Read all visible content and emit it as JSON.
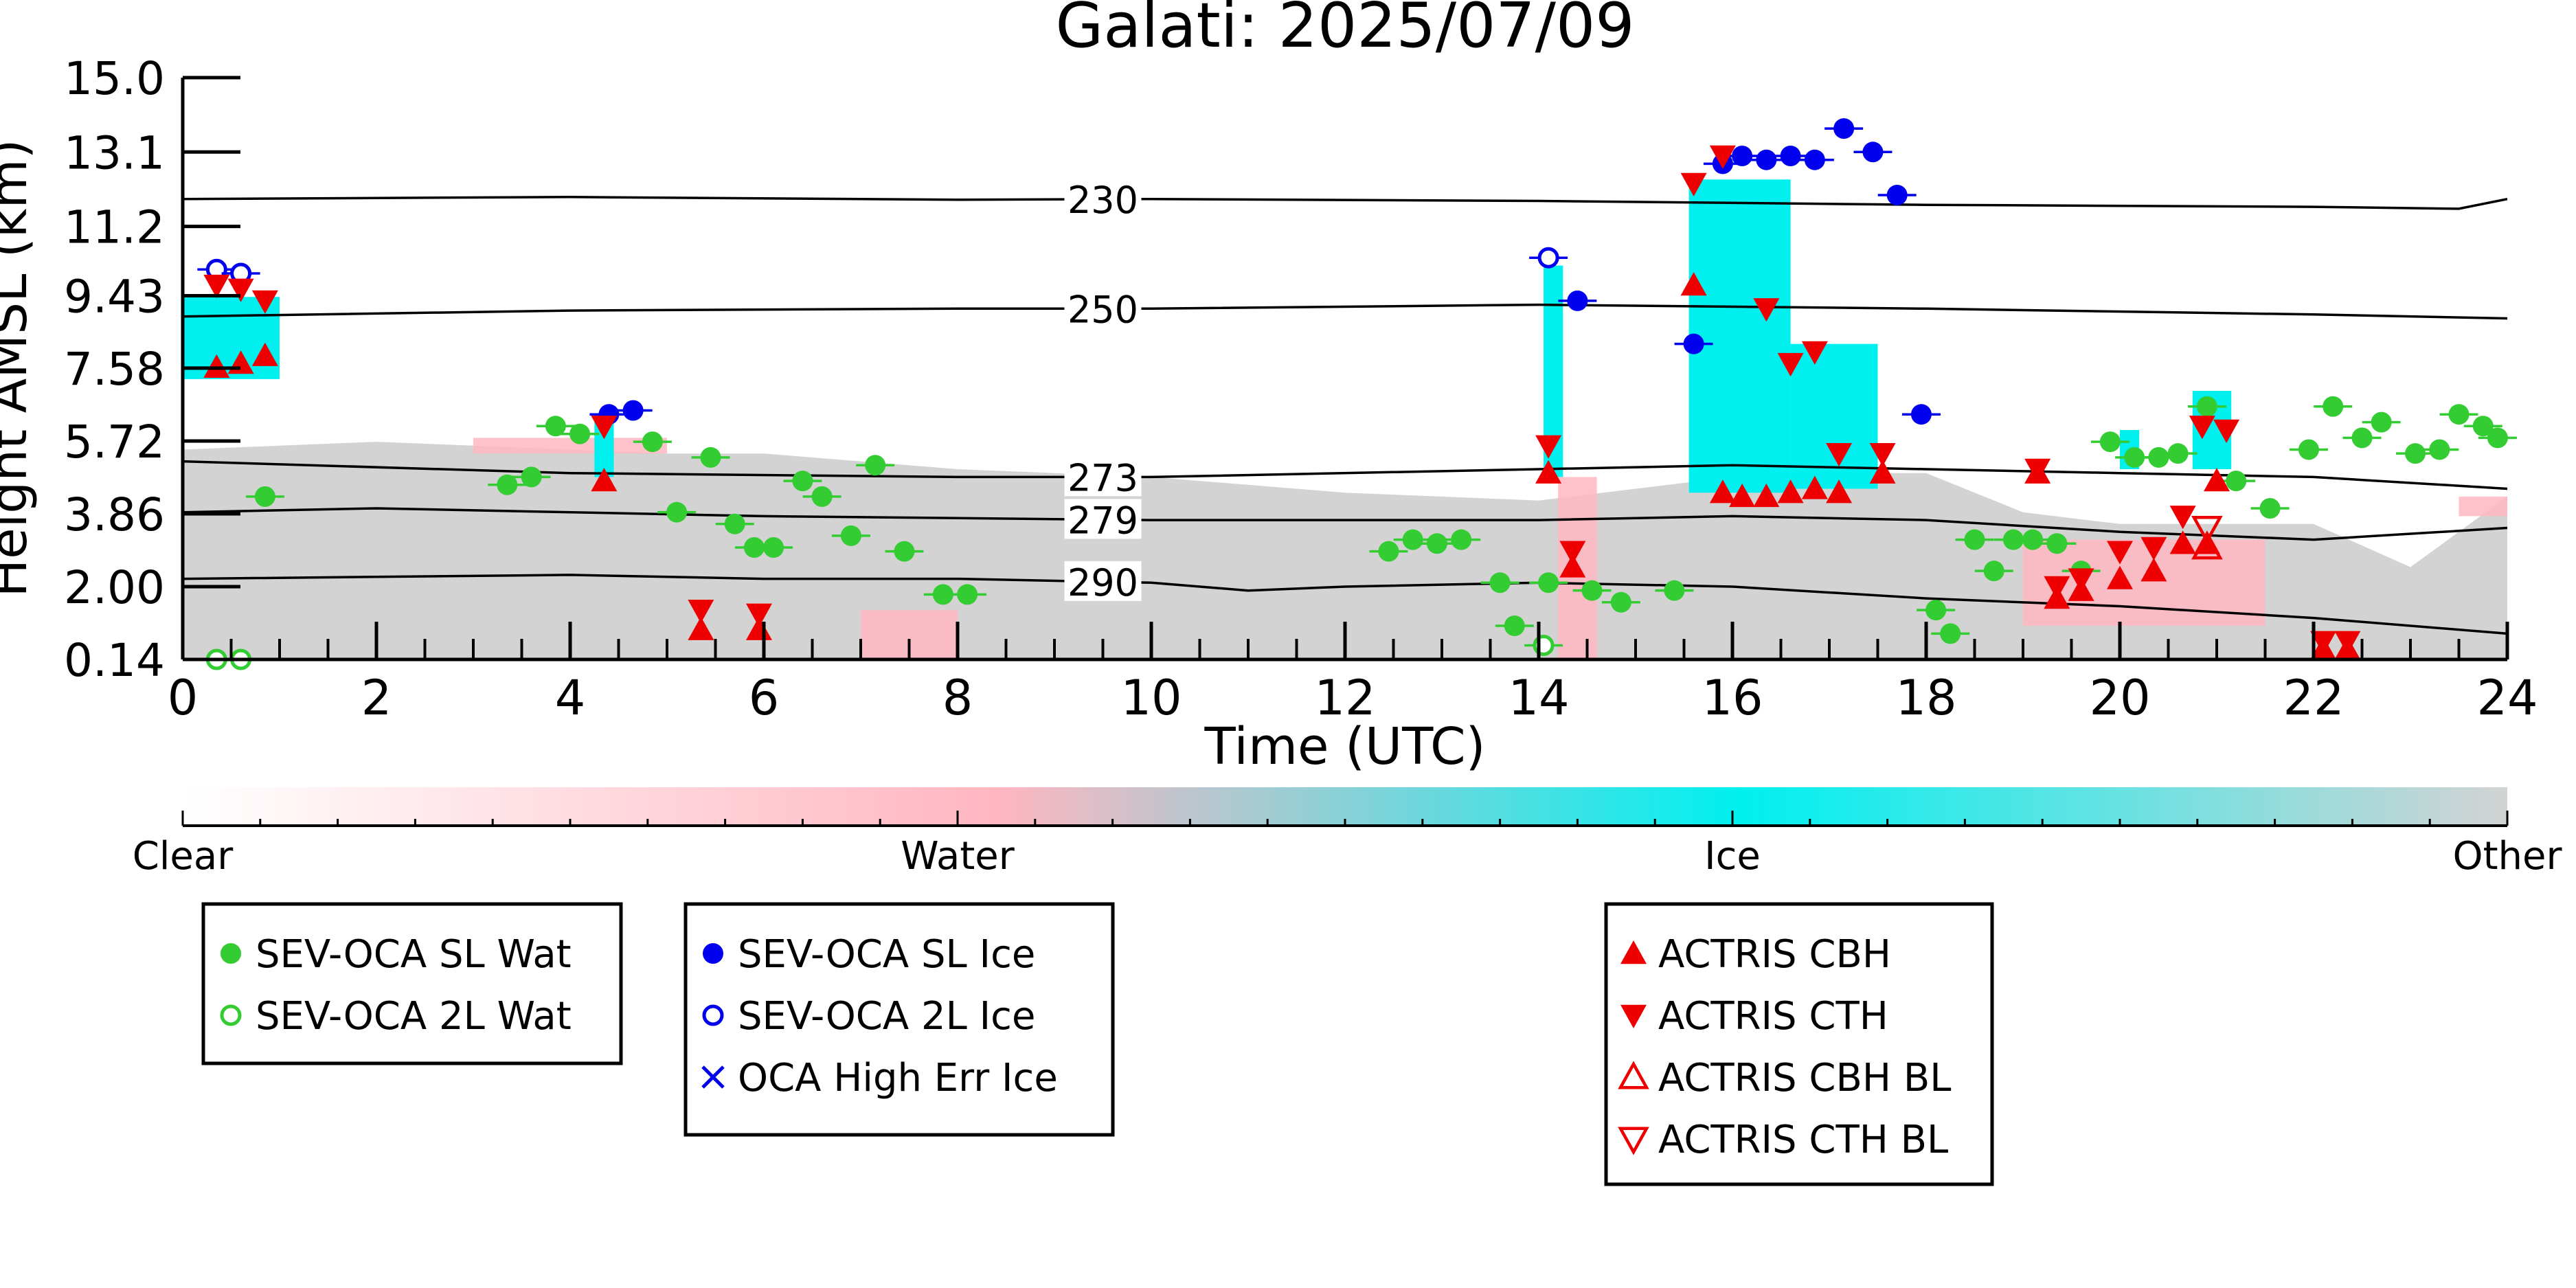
{
  "chart_data": {
    "type": "scatter",
    "title": "Galati: 2025/07/09",
    "xlabel": "Time (UTC)",
    "ylabel": "Height AMSL (km)",
    "xlim": [
      0,
      24
    ],
    "ylim": [
      0.14,
      15.0
    ],
    "x_ticks": [
      0,
      2,
      4,
      6,
      8,
      10,
      12,
      14,
      16,
      18,
      20,
      22,
      24
    ],
    "y_ticks": [
      "0.14",
      "2.00",
      "3.86",
      "5.72",
      "7.58",
      "9.43",
      "11.2",
      "13.1",
      "15.0"
    ],
    "y_tick_values": [
      0.14,
      2.0,
      3.86,
      5.72,
      7.58,
      9.43,
      11.2,
      13.1,
      15.0
    ],
    "grid": false,
    "background_classes": {
      "other_gray": [
        [
          0.0,
          5.5
        ],
        [
          1.0,
          5.6
        ],
        [
          2.0,
          5.7
        ],
        [
          3.0,
          5.6
        ],
        [
          4.0,
          5.5
        ],
        [
          5.0,
          5.4
        ],
        [
          6.0,
          5.4
        ],
        [
          7.0,
          5.2
        ],
        [
          8.0,
          5.0
        ],
        [
          9.0,
          4.9
        ],
        [
          10.0,
          4.8
        ],
        [
          11.0,
          4.6
        ],
        [
          12.0,
          4.4
        ],
        [
          13.0,
          4.3
        ],
        [
          14.0,
          4.2
        ],
        [
          15.0,
          4.5
        ],
        [
          16.0,
          4.8
        ],
        [
          17.0,
          4.9
        ],
        [
          18.0,
          4.9
        ],
        [
          19.0,
          3.9
        ],
        [
          20.0,
          3.6
        ],
        [
          21.0,
          3.6
        ],
        [
          22.0,
          3.6
        ],
        [
          23.0,
          2.5
        ],
        [
          24.0,
          4.3
        ]
      ],
      "ice_regions": [
        [
          [
            0.0,
            7.3
          ],
          [
            1.0,
            7.3
          ],
          [
            1.0,
            9.4
          ],
          [
            0.0,
            9.4
          ]
        ],
        [
          [
            15.55,
            4.4
          ],
          [
            16.6,
            4.4
          ],
          [
            16.6,
            12.4
          ],
          [
            15.55,
            12.4
          ]
        ],
        [
          [
            16.6,
            4.5
          ],
          [
            17.5,
            4.5
          ],
          [
            17.5,
            8.2
          ],
          [
            16.6,
            8.2
          ]
        ],
        [
          [
            14.05,
            4.8
          ],
          [
            14.25,
            4.8
          ],
          [
            14.25,
            10.2
          ],
          [
            14.05,
            10.2
          ]
        ],
        [
          [
            4.25,
            4.8
          ],
          [
            4.45,
            4.8
          ],
          [
            4.45,
            6.4
          ],
          [
            4.25,
            6.4
          ]
        ],
        [
          [
            20.75,
            5.0
          ],
          [
            21.15,
            5.0
          ],
          [
            21.15,
            7.0
          ],
          [
            20.75,
            7.0
          ]
        ],
        [
          [
            20.0,
            5.0
          ],
          [
            20.2,
            5.0
          ],
          [
            20.2,
            6.0
          ],
          [
            20.0,
            6.0
          ]
        ]
      ],
      "water_patches": [
        [
          [
            3.0,
            5.4
          ],
          [
            5.0,
            5.4
          ],
          [
            5.0,
            5.8
          ],
          [
            3.0,
            5.8
          ]
        ],
        [
          [
            7.0,
            0.14
          ],
          [
            8.0,
            0.14
          ],
          [
            8.0,
            1.4
          ],
          [
            7.0,
            1.4
          ]
        ],
        [
          [
            19.0,
            1.0
          ],
          [
            21.5,
            1.0
          ],
          [
            21.5,
            3.2
          ],
          [
            19.0,
            3.2
          ]
        ],
        [
          [
            14.2,
            0.14
          ],
          [
            14.6,
            0.14
          ],
          [
            14.6,
            4.8
          ],
          [
            14.2,
            4.8
          ]
        ],
        [
          [
            23.5,
            3.8
          ],
          [
            24.0,
            3.8
          ],
          [
            24.0,
            4.3
          ],
          [
            23.5,
            4.3
          ]
        ]
      ]
    },
    "isotherms": [
      {
        "label": "230",
        "points": [
          [
            0,
            11.9
          ],
          [
            4,
            11.95
          ],
          [
            8,
            11.88
          ],
          [
            10,
            11.9
          ],
          [
            14,
            11.85
          ],
          [
            18,
            11.75
          ],
          [
            22,
            11.7
          ],
          [
            23.5,
            11.65
          ],
          [
            24,
            11.9
          ]
        ]
      },
      {
        "label": "250",
        "points": [
          [
            0,
            8.9
          ],
          [
            4,
            9.05
          ],
          [
            8,
            9.1
          ],
          [
            10,
            9.1
          ],
          [
            14,
            9.2
          ],
          [
            18,
            9.1
          ],
          [
            22,
            8.95
          ],
          [
            24,
            8.85
          ]
        ]
      },
      {
        "label": "273",
        "points": [
          [
            0,
            5.2
          ],
          [
            4,
            4.9
          ],
          [
            8,
            4.8
          ],
          [
            10,
            4.8
          ],
          [
            14,
            5.0
          ],
          [
            16,
            5.1
          ],
          [
            18,
            5.0
          ],
          [
            20,
            4.9
          ],
          [
            22,
            4.8
          ],
          [
            24,
            4.5
          ]
        ]
      },
      {
        "label": "279",
        "points": [
          [
            0,
            3.9
          ],
          [
            2,
            4.0
          ],
          [
            6,
            3.8
          ],
          [
            10,
            3.7
          ],
          [
            14,
            3.7
          ],
          [
            16,
            3.8
          ],
          [
            18,
            3.7
          ],
          [
            20,
            3.4
          ],
          [
            22,
            3.2
          ],
          [
            24,
            3.5
          ]
        ]
      },
      {
        "label": "290",
        "points": [
          [
            0,
            2.2
          ],
          [
            4,
            2.3
          ],
          [
            6,
            2.2
          ],
          [
            8,
            2.2
          ],
          [
            10,
            2.1
          ],
          [
            11,
            1.9
          ],
          [
            12,
            2.0
          ],
          [
            14,
            2.1
          ],
          [
            16,
            2.0
          ],
          [
            18,
            1.7
          ],
          [
            20,
            1.5
          ],
          [
            22,
            1.2
          ],
          [
            24,
            0.8
          ]
        ]
      }
    ],
    "isotherm_label_x": 9.5,
    "series": [
      {
        "name": "SEV-OCA SL Wat",
        "marker": "filled-circle",
        "color": "#33cc33",
        "points": [
          [
            0.85,
            4.3
          ],
          [
            3.35,
            4.6
          ],
          [
            3.6,
            4.8
          ],
          [
            3.85,
            6.1
          ],
          [
            4.1,
            5.9
          ],
          [
            4.85,
            5.7
          ],
          [
            5.1,
            3.9
          ],
          [
            5.45,
            5.3
          ],
          [
            5.7,
            3.6
          ],
          [
            5.9,
            3.0
          ],
          [
            6.1,
            3.0
          ],
          [
            6.4,
            4.7
          ],
          [
            6.6,
            4.3
          ],
          [
            6.9,
            3.3
          ],
          [
            7.15,
            5.1
          ],
          [
            7.45,
            2.9
          ],
          [
            7.85,
            1.8
          ],
          [
            8.1,
            1.8
          ],
          [
            12.45,
            2.9
          ],
          [
            12.7,
            3.2
          ],
          [
            12.95,
            3.1
          ],
          [
            13.2,
            3.2
          ],
          [
            13.6,
            2.1
          ],
          [
            13.75,
            1.0
          ],
          [
            14.1,
            2.1
          ],
          [
            14.55,
            1.9
          ],
          [
            14.85,
            1.6
          ],
          [
            15.4,
            1.9
          ],
          [
            18.1,
            1.4
          ],
          [
            18.25,
            0.8
          ],
          [
            18.5,
            3.2
          ],
          [
            18.7,
            2.4
          ],
          [
            18.9,
            3.2
          ],
          [
            19.1,
            3.2
          ],
          [
            19.35,
            3.1
          ],
          [
            19.6,
            2.4
          ],
          [
            19.9,
            5.7
          ],
          [
            20.15,
            5.3
          ],
          [
            20.4,
            5.3
          ],
          [
            20.6,
            5.4
          ],
          [
            20.9,
            6.6
          ],
          [
            21.2,
            4.7
          ],
          [
            21.55,
            4.0
          ],
          [
            21.95,
            5.5
          ],
          [
            22.2,
            6.6
          ],
          [
            22.5,
            5.8
          ],
          [
            22.7,
            6.2
          ],
          [
            23.05,
            5.4
          ],
          [
            23.3,
            5.5
          ],
          [
            23.5,
            6.4
          ],
          [
            23.75,
            6.1
          ],
          [
            23.9,
            5.8
          ]
        ]
      },
      {
        "name": "SEV-OCA 2L Wat",
        "marker": "open-circle",
        "color": "#33cc33",
        "points": [
          [
            0.35,
            0.14
          ],
          [
            0.6,
            0.14
          ],
          [
            14.05,
            0.5
          ]
        ]
      },
      {
        "name": "SEV-OCA SL Ice",
        "marker": "filled-circle",
        "color": "#0000ee",
        "points": [
          [
            4.4,
            6.4
          ],
          [
            4.65,
            6.5
          ],
          [
            14.4,
            9.3
          ],
          [
            15.6,
            8.2
          ],
          [
            15.9,
            12.8
          ],
          [
            16.1,
            13.0
          ],
          [
            16.35,
            12.9
          ],
          [
            16.6,
            13.0
          ],
          [
            16.85,
            12.9
          ],
          [
            17.15,
            13.7
          ],
          [
            17.45,
            13.1
          ],
          [
            17.7,
            12.0
          ],
          [
            17.95,
            6.4
          ]
        ]
      },
      {
        "name": "SEV-OCA 2L Ice",
        "marker": "open-circle",
        "color": "#0000ee",
        "points": [
          [
            0.35,
            10.1
          ],
          [
            0.6,
            10.0
          ],
          [
            14.1,
            10.4
          ]
        ]
      },
      {
        "name": "OCA High Err Ice",
        "marker": "cross",
        "color": "#0000ee",
        "points": []
      },
      {
        "name": "ACTRIS CBH",
        "marker": "filled-triangle-up",
        "color": "#ee0000",
        "points": [
          [
            0.35,
            7.6
          ],
          [
            0.6,
            7.7
          ],
          [
            0.85,
            7.9
          ],
          [
            4.35,
            4.7
          ],
          [
            5.35,
            0.9
          ],
          [
            5.95,
            0.9
          ],
          [
            14.1,
            4.9
          ],
          [
            14.35,
            2.5
          ],
          [
            15.6,
            9.7
          ],
          [
            15.9,
            4.4
          ],
          [
            16.1,
            4.3
          ],
          [
            16.35,
            4.3
          ],
          [
            16.6,
            4.4
          ],
          [
            16.85,
            4.5
          ],
          [
            17.1,
            4.4
          ],
          [
            17.55,
            4.9
          ],
          [
            19.15,
            4.9
          ],
          [
            19.35,
            1.7
          ],
          [
            19.6,
            1.9
          ],
          [
            20.0,
            2.2
          ],
          [
            20.35,
            2.4
          ],
          [
            20.65,
            3.1
          ],
          [
            20.9,
            3.1
          ],
          [
            21.0,
            4.7
          ],
          [
            22.1,
            0.4
          ],
          [
            22.35,
            0.4
          ]
        ]
      },
      {
        "name": "ACTRIS CTH",
        "marker": "filled-triangle-down",
        "color": "#ee0000",
        "points": [
          [
            0.35,
            9.7
          ],
          [
            0.6,
            9.6
          ],
          [
            0.85,
            9.3
          ],
          [
            4.35,
            6.1
          ],
          [
            5.35,
            1.4
          ],
          [
            5.95,
            1.3
          ],
          [
            14.1,
            5.6
          ],
          [
            14.35,
            2.9
          ],
          [
            15.6,
            12.3
          ],
          [
            15.9,
            13.0
          ],
          [
            16.35,
            9.1
          ],
          [
            16.6,
            7.7
          ],
          [
            16.85,
            8.0
          ],
          [
            17.1,
            5.4
          ],
          [
            17.55,
            5.4
          ],
          [
            19.15,
            5.0
          ],
          [
            19.35,
            2.0
          ],
          [
            19.6,
            2.2
          ],
          [
            20.0,
            2.9
          ],
          [
            20.35,
            3.0
          ],
          [
            20.65,
            3.8
          ],
          [
            20.85,
            6.1
          ],
          [
            21.1,
            6.0
          ],
          [
            22.1,
            0.6
          ],
          [
            22.35,
            0.6
          ]
        ]
      },
      {
        "name": "ACTRIS CBH BL",
        "marker": "open-triangle-up",
        "color": "#ee0000",
        "points": [
          [
            20.9,
            3.0
          ]
        ]
      },
      {
        "name": "ACTRIS CTH BL",
        "marker": "open-triangle-down",
        "color": "#ee0000",
        "points": [
          [
            20.9,
            3.5
          ]
        ]
      }
    ],
    "colorbar": {
      "labels": [
        "Clear",
        "Water",
        "Ice",
        "Other"
      ]
    }
  },
  "legend_groups": [
    {
      "entries": [
        {
          "label": "SEV-OCA SL Wat",
          "marker": "filled-circle",
          "color": "#33cc33"
        },
        {
          "label": "SEV-OCA 2L Wat",
          "marker": "open-circle",
          "color": "#33cc33"
        }
      ]
    },
    {
      "entries": [
        {
          "label": "SEV-OCA SL Ice",
          "marker": "filled-circle",
          "color": "#0000ee"
        },
        {
          "label": "SEV-OCA 2L Ice",
          "marker": "open-circle",
          "color": "#0000ee"
        },
        {
          "label": "OCA High Err Ice",
          "marker": "cross",
          "color": "#0000ee"
        }
      ]
    },
    {
      "entries": [
        {
          "label": "ACTRIS CBH",
          "marker": "filled-triangle-up",
          "color": "#ee0000"
        },
        {
          "label": "ACTRIS CTH",
          "marker": "filled-triangle-down",
          "color": "#ee0000"
        },
        {
          "label": "ACTRIS CBH BL",
          "marker": "open-triangle-up",
          "color": "#ee0000"
        },
        {
          "label": "ACTRIS CTH BL",
          "marker": "open-triangle-down",
          "color": "#ee0000"
        }
      ]
    }
  ],
  "colors": {
    "other": "#d3d3d3",
    "ice": "#00f0f0",
    "water": "#ffb6c1",
    "isotherm": "#000000"
  }
}
